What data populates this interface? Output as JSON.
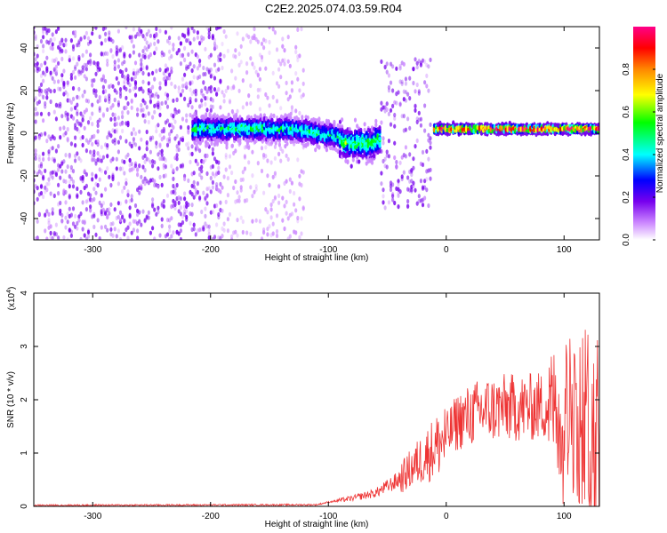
{
  "title": "C2E2.2025.074.03.59.R04",
  "chart_data": [
    {
      "type": "heatmap",
      "xlabel": "Height of straight line (km)",
      "ylabel": "Frequency (Hz)",
      "xlim": [
        -350,
        130
      ],
      "ylim": [
        -50,
        50
      ],
      "x_ticks": [
        -300,
        -200,
        -100,
        0,
        100
      ],
      "y_ticks": [
        -40,
        -20,
        0,
        20,
        40
      ],
      "colorbar": {
        "label": "Normalized spectral amplitude",
        "range": [
          0,
          1
        ],
        "ticks": [
          "0.0",
          "0.2",
          "0.4",
          "0.6",
          "0.8"
        ],
        "colors": [
          "#ffffff",
          "#cc88ff",
          "#7700ee",
          "#0000ff",
          "#00ffff",
          "#00ff00",
          "#ffff00",
          "#ff8800",
          "#ff0000",
          "#ff0088"
        ]
      },
      "regions": [
        {
          "x": [
            -350,
            -190
          ],
          "freq_spread": 50,
          "amplitude": 0.1,
          "density": "high"
        },
        {
          "x": [
            -190,
            -120
          ],
          "freq_spread": 50,
          "amplitude": 0.05,
          "density": "medium"
        },
        {
          "x": [
            -215,
            -90
          ],
          "freq_center": 2,
          "freq_spread": 6,
          "amplitude": 0.4
        },
        {
          "x": [
            -90,
            -55
          ],
          "freq_center": -3,
          "freq_spread": 8,
          "amplitude": 0.45
        },
        {
          "x": [
            -55,
            -12
          ],
          "freq_spread": 35,
          "amplitude": 0.12,
          "density": "medium"
        },
        {
          "x": [
            -10,
            130
          ],
          "freq_center": 2,
          "freq_spread": 2,
          "amplitude": 0.9
        }
      ]
    },
    {
      "type": "line",
      "xlabel": "Height of straight line (km)",
      "ylabel": "SNR (10 * v/v)",
      "y_multiplier": "(x10",
      "y_multiplier_exp": "4",
      "xlim": [
        -350,
        130
      ],
      "ylim": [
        0,
        4
      ],
      "x_ticks": [
        -300,
        -200,
        -100,
        0,
        100
      ],
      "y_ticks": [
        0,
        1,
        2,
        3,
        4
      ],
      "line_color": "#ee3333",
      "trend": {
        "x": [
          -350,
          -110,
          -100,
          -80,
          -60,
          -40,
          -30,
          -20,
          -10,
          0,
          10,
          30,
          50,
          70,
          85,
          95,
          105,
          115,
          125,
          130
        ],
        "y": [
          0.02,
          0.03,
          0.08,
          0.15,
          0.25,
          0.5,
          0.7,
          0.9,
          1.1,
          1.3,
          1.6,
          1.8,
          1.85,
          1.85,
          1.9,
          1.9,
          1.8,
          1.7,
          1.6,
          1.5
        ]
      }
    }
  ]
}
